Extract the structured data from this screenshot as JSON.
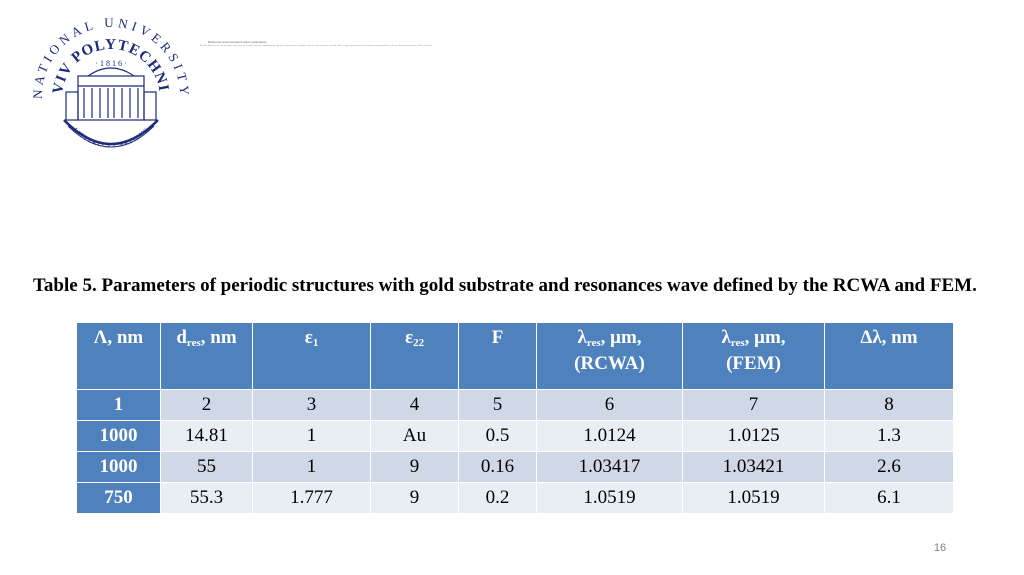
{
  "logo": {
    "arc_text_top": "NATIONAL UNIVERSITY",
    "arc_text_mid": "LVIV POLYTECHNIC",
    "year": "· 1 8 1 6 ·",
    "motto": "LITTERIS ET ARTIBUS",
    "color": "#1b2a7a"
  },
  "header_tiny": {
    "line1": "Reference and resonance wave parameters",
    "line2": "Results obtained for the periodic structures with gold substrate computed by rigorous coupled wave analysis and the finite element method show a good agreement of resonance wavelengths for all considered parameters of the structure"
  },
  "caption": "Table 5. Parameters of periodic structures with gold substrate and resonances wave defined by the RCWA and FEM.",
  "table": {
    "headers": [
      {
        "main": "Λ, nm",
        "sub": "",
        "rest": ""
      },
      {
        "main": "d",
        "sub": "res",
        "rest": ", nm"
      },
      {
        "main": "ε",
        "sub": "1",
        "rest": ""
      },
      {
        "main": "ε",
        "sub": "22",
        "rest": ""
      },
      {
        "main": "F",
        "sub": "",
        "rest": ""
      },
      {
        "main": "λ",
        "sub": "res",
        "rest": ", μm,",
        "line2": "(RCWA)"
      },
      {
        "main": "λ",
        "sub": "res",
        "rest": ", μm,",
        "line2": "(FEM)"
      },
      {
        "main": "Δλ, nm",
        "sub": "",
        "rest": ""
      }
    ],
    "rows": [
      [
        "1",
        "2",
        "3",
        "4",
        "5",
        "6",
        "7",
        "8"
      ],
      [
        "1000",
        "14.81",
        "1",
        "Au",
        "0.5",
        "1.0124",
        "1.0125",
        "1.3"
      ],
      [
        "1000",
        "55",
        "1",
        "9",
        "0.16",
        "1.03417",
        "1.03421",
        "2.6"
      ],
      [
        "750",
        "55.3",
        "1.777",
        "9",
        "0.2",
        "1.0519",
        "1.0519",
        "6.1"
      ]
    ],
    "colors": {
      "header": "#4f81bd",
      "row_odd": "#d0d8e8",
      "row_even": "#e9edf4"
    }
  },
  "page_number": "16"
}
